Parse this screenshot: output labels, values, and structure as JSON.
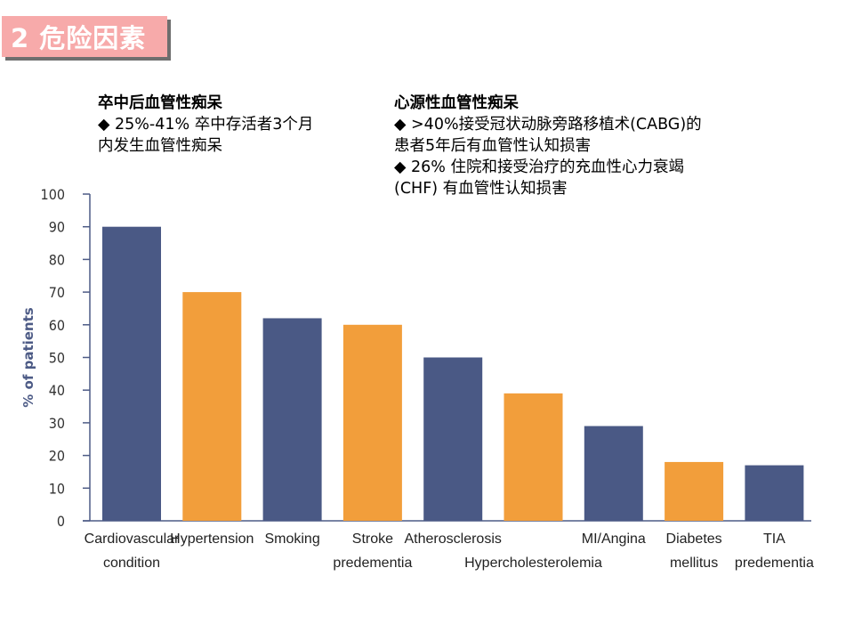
{
  "slide_title": "2  危险因素",
  "left_text": {
    "heading": "卒中后血管性痴呆",
    "lines": [
      "◆ 25%-41% 卒中存活者3个月",
      "内发生血管性痴呆"
    ]
  },
  "right_text": {
    "heading": "心源性血管性痴呆",
    "lines": [
      "◆ >40%接受冠状动脉旁路移植术(CABG)的",
      "患者5年后有血管性认知损害",
      "◆ 26% 住院和接受治疗的充血性心力衰竭",
      "(CHF) 有血管性认知损害"
    ]
  },
  "colors": {
    "navy": "#4a5985",
    "orange": "#f29e3b",
    "axis": "#4d5b86",
    "title_bg": "#f7aaaa"
  },
  "chart_data": {
    "type": "bar",
    "ylabel": "% of patients",
    "ylim": [
      0,
      100
    ],
    "yticks": [
      0,
      10,
      20,
      30,
      40,
      50,
      60,
      70,
      80,
      90,
      100
    ],
    "categories": [
      [
        "Cardiovascular",
        "condition"
      ],
      [
        "Hypertension"
      ],
      [
        "Smoking"
      ],
      [
        "Stroke",
        "predementia"
      ],
      [
        "Atherosclerosis"
      ],
      [
        "Hypercholesterolemia"
      ],
      [
        "MI/Angina"
      ],
      [
        "Diabetes",
        "mellitus"
      ],
      [
        "TIA",
        "predementia"
      ]
    ],
    "values": [
      90,
      70,
      62,
      60,
      50,
      39,
      29,
      18,
      17
    ],
    "bar_colors": [
      "navy",
      "orange",
      "navy",
      "orange",
      "navy",
      "orange",
      "navy",
      "orange",
      "navy"
    ]
  }
}
